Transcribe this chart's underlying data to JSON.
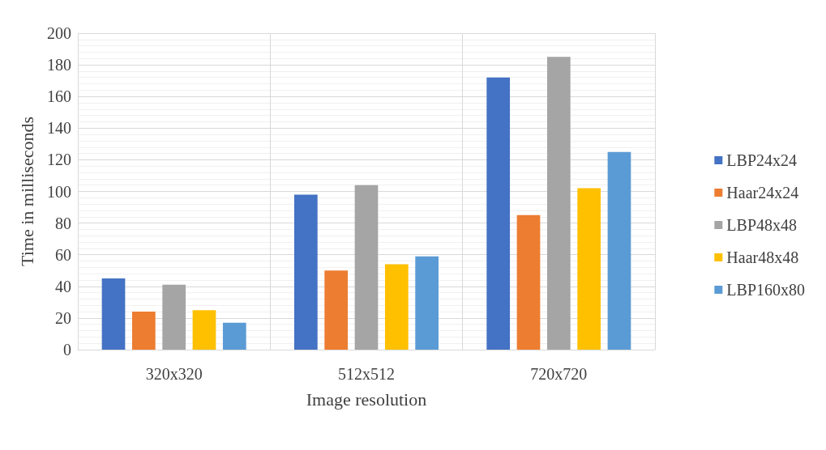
{
  "chart_data": {
    "type": "bar",
    "xlabel": "Image resolution",
    "ylabel": "Time in milliseconds",
    "categories": [
      "320x320",
      "512x512",
      "720x720"
    ],
    "series": [
      {
        "name": "LBP24x24",
        "color": "#4472c4",
        "values": [
          45,
          98,
          172
        ]
      },
      {
        "name": "Haar24x24",
        "color": "#ed7d31",
        "values": [
          24,
          50,
          85
        ]
      },
      {
        "name": "LBP48x48",
        "color": "#a5a5a5",
        "values": [
          41,
          104,
          185
        ]
      },
      {
        "name": "Haar48x48",
        "color": "#ffc000",
        "values": [
          25,
          54,
          102
        ]
      },
      {
        "name": "LBP160x80",
        "color": "#5b9bd5",
        "values": [
          17,
          59,
          125
        ]
      }
    ],
    "ylim": [
      0,
      200
    ],
    "yticks": [
      0,
      20,
      40,
      60,
      80,
      100,
      120,
      140,
      160,
      180,
      200
    ],
    "grid": true,
    "legend": "right"
  }
}
